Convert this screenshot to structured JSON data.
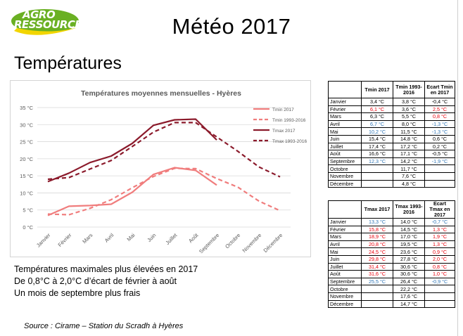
{
  "header": {
    "logo_line1": "AGRO",
    "logo_line2": "RESSOURCES",
    "title": "Météo 2017",
    "section": "Températures"
  },
  "colors": {
    "tmin_2017": "#f07d7d",
    "tmin_avg": "#f07d7d",
    "tmax_2017": "#8b1a2b",
    "tmax_avg": "#8b1a2b",
    "positive_deviation": "#e8000b",
    "negative_deviation": "#2f75b5",
    "logo_green": "#6ab023",
    "logo_yellow": "#f2d500"
  },
  "chart_data": {
    "type": "line",
    "title": "Températures moyennes mensuelles - Hyères",
    "xlabel": "",
    "ylabel": "",
    "ylim": [
      0,
      35
    ],
    "yticks": [
      "0 °C",
      "5 °C",
      "10 °C",
      "15 °C",
      "20 °C",
      "25 °C",
      "30 °C",
      "35 °C"
    ],
    "grid": true,
    "legend_position": "top-right",
    "categories": [
      "Janvier",
      "Février",
      "Mars",
      "Avril",
      "Mai",
      "Juin",
      "Juillet",
      "Août",
      "Septembre",
      "Octobre",
      "Novembre",
      "Décembre"
    ],
    "series": [
      {
        "name": "Tmin 2017",
        "style": "solid",
        "values": [
          3.4,
          6.1,
          6.3,
          6.7,
          10.2,
          15.4,
          17.4,
          16.6,
          12.3,
          null,
          null,
          null
        ]
      },
      {
        "name": "Tmin 1993-2016",
        "style": "dashed",
        "values": [
          3.8,
          3.6,
          5.5,
          8.0,
          11.5,
          14.8,
          17.2,
          17.1,
          14.2,
          11.7,
          7.6,
          4.8
        ]
      },
      {
        "name": "Tmax 2017",
        "style": "solid",
        "values": [
          13.3,
          15.8,
          18.9,
          20.8,
          24.5,
          29.8,
          31.4,
          31.6,
          25.5,
          null,
          null,
          null
        ]
      },
      {
        "name": "Tmax 1993-2016",
        "style": "dashed",
        "values": [
          14.0,
          14.5,
          17.0,
          19.5,
          23.6,
          27.8,
          30.6,
          30.6,
          26.4,
          22.2,
          17.6,
          14.7
        ]
      }
    ]
  },
  "table_tmin": {
    "headers": [
      "",
      "Tmin 2017",
      "Tmin 1993-2016",
      "Ecart Tmin en 2017"
    ],
    "rows": [
      {
        "month": "Janvier",
        "v2017": "3,4 °C",
        "avg": "3,8 °C",
        "diff": "-0,4 °C",
        "c2017": "",
        "cdiff": ""
      },
      {
        "month": "Février",
        "v2017": "6,1 °C",
        "avg": "3,6 °C",
        "diff": "2,5 °C",
        "c2017": "red",
        "cdiff": "red"
      },
      {
        "month": "Mars",
        "v2017": "6,3 °C",
        "avg": "5,5 °C",
        "diff": "0,8 °C",
        "c2017": "",
        "cdiff": "red"
      },
      {
        "month": "Avril",
        "v2017": "6,7 °C",
        "avg": "8,0 °C",
        "diff": "-1,3 °C",
        "c2017": "blue",
        "cdiff": "blue"
      },
      {
        "month": "Mai",
        "v2017": "10,2 °C",
        "avg": "11,5 °C",
        "diff": "-1,3 °C",
        "c2017": "blue",
        "cdiff": "blue"
      },
      {
        "month": "Juin",
        "v2017": "15,4 °C",
        "avg": "14,8 °C",
        "diff": "0,6 °C",
        "c2017": "",
        "cdiff": ""
      },
      {
        "month": "Juillet",
        "v2017": "17,4 °C",
        "avg": "17,2 °C",
        "diff": "0,2 °C",
        "c2017": "",
        "cdiff": ""
      },
      {
        "month": "Août",
        "v2017": "16,6 °C",
        "avg": "17,1 °C",
        "diff": "-0,5 °C",
        "c2017": "",
        "cdiff": ""
      },
      {
        "month": "Septembre",
        "v2017": "12,3 °C",
        "avg": "14,2 °C",
        "diff": "-1,9 °C",
        "c2017": "blue",
        "cdiff": "blue"
      },
      {
        "month": "Octobre",
        "v2017": "",
        "avg": "11,7 °C",
        "diff": "",
        "c2017": "",
        "cdiff": ""
      },
      {
        "month": "Novembre",
        "v2017": "",
        "avg": "7,6 °C",
        "diff": "",
        "c2017": "",
        "cdiff": ""
      },
      {
        "month": "Décembre",
        "v2017": "",
        "avg": "4,8 °C",
        "diff": "",
        "c2017": "",
        "cdiff": ""
      }
    ]
  },
  "table_tmax": {
    "headers": [
      "",
      "Tmax 2017",
      "Tmax 1993-2016",
      "Ecart Tmax en 2017"
    ],
    "rows": [
      {
        "month": "Janvier",
        "v2017": "13,3 °C",
        "avg": "14,0 °C",
        "diff": "-0,7 °C",
        "c2017": "blue",
        "cdiff": "blue"
      },
      {
        "month": "Février",
        "v2017": "15,8 °C",
        "avg": "14,5 °C",
        "diff": "1,3 °C",
        "c2017": "red",
        "cdiff": "red"
      },
      {
        "month": "Mars",
        "v2017": "18,9 °C",
        "avg": "17,0 °C",
        "diff": "1,9 °C",
        "c2017": "red",
        "cdiff": "red"
      },
      {
        "month": "Avril",
        "v2017": "20,8 °C",
        "avg": "19,5 °C",
        "diff": "1,3 °C",
        "c2017": "red",
        "cdiff": "red"
      },
      {
        "month": "Mai",
        "v2017": "24,5 °C",
        "avg": "23,6 °C",
        "diff": "0,9 °C",
        "c2017": "red",
        "cdiff": "red"
      },
      {
        "month": "Juin",
        "v2017": "29,8 °C",
        "avg": "27,8 °C",
        "diff": "2,0 °C",
        "c2017": "red",
        "cdiff": "red"
      },
      {
        "month": "Juillet",
        "v2017": "31,4 °C",
        "avg": "30,6 °C",
        "diff": "0,8 °C",
        "c2017": "red",
        "cdiff": "red"
      },
      {
        "month": "Août",
        "v2017": "31,6 °C",
        "avg": "30,6 °C",
        "diff": "1,0 °C",
        "c2017": "red",
        "cdiff": "red"
      },
      {
        "month": "Septembre",
        "v2017": "25,5 °C",
        "avg": "26,4 °C",
        "diff": "-0,9 °C",
        "c2017": "blue",
        "cdiff": "blue"
      },
      {
        "month": "Octobre",
        "v2017": "",
        "avg": "22,2 °C",
        "diff": "",
        "c2017": "",
        "cdiff": ""
      },
      {
        "month": "Novembre",
        "v2017": "",
        "avg": "17,6 °C",
        "diff": "",
        "c2017": "",
        "cdiff": ""
      },
      {
        "month": "Décembre",
        "v2017": "",
        "avg": "14,7 °C",
        "diff": "",
        "c2017": "",
        "cdiff": ""
      }
    ]
  },
  "bullets": [
    "Températures maximales plus élevées en 2017",
    "De 0,8°C à 2,0°C d’écart de février à août",
    "Un mois de septembre plus frais"
  ],
  "source": "Source : Cirame – Station du Scradh à Hyères"
}
